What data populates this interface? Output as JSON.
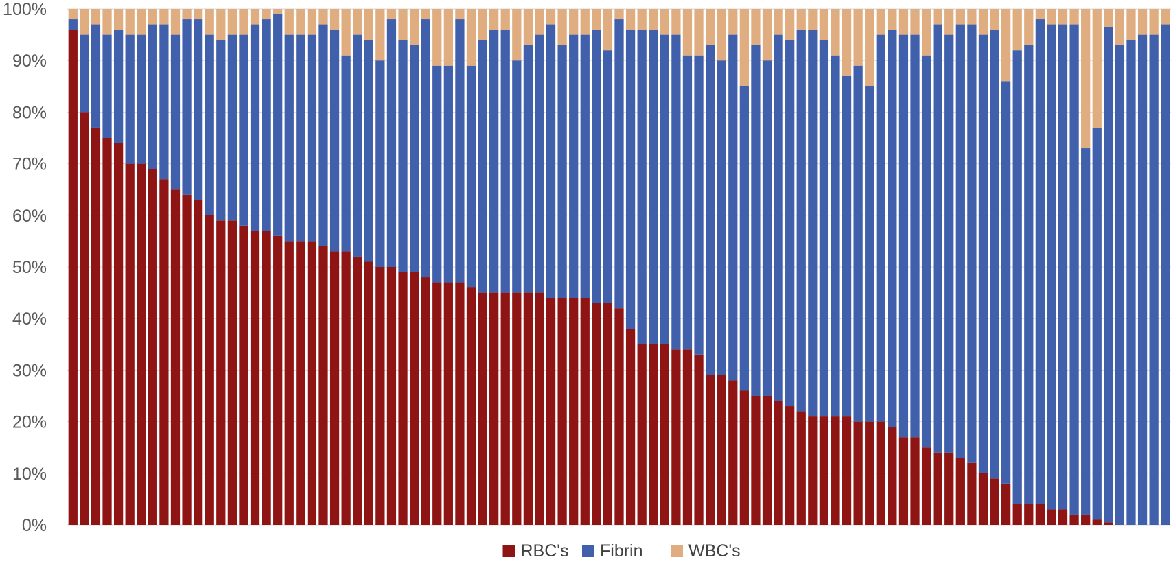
{
  "chart_data": {
    "type": "bar",
    "stacked": true,
    "percent_stacked": true,
    "ylim": [
      0,
      100
    ],
    "y_ticks": [
      "0%",
      "10%",
      "20%",
      "30%",
      "40%",
      "50%",
      "60%",
      "70%",
      "80%",
      "90%",
      "100%"
    ],
    "grid": true,
    "legend_position": "bottom",
    "series": [
      {
        "name": "RBC's",
        "color": "#8f1414",
        "values": [
          96,
          80,
          77,
          75,
          74,
          70,
          70,
          69,
          67,
          65,
          64,
          63,
          60,
          59,
          59,
          58,
          57,
          57,
          56,
          55,
          55,
          55,
          54,
          53,
          53,
          52,
          51,
          50,
          50,
          49,
          49,
          48,
          47,
          47,
          47,
          46,
          45,
          45,
          45,
          45,
          45,
          45,
          44,
          44,
          44,
          44,
          43,
          43,
          42,
          38,
          35,
          35,
          35,
          34,
          34,
          33,
          29,
          29,
          28,
          26,
          25,
          25,
          24,
          23,
          22,
          21,
          21,
          21,
          21,
          20,
          20,
          20,
          19,
          17,
          17,
          15,
          14,
          14,
          13,
          12,
          10,
          9,
          8,
          4,
          4,
          4,
          3,
          3,
          2,
          2,
          1,
          0.5,
          0,
          0,
          0,
          0,
          0
        ]
      },
      {
        "name": "Fibrin",
        "color": "#4160ab",
        "values": [
          2,
          15,
          20,
          20,
          22,
          25,
          25,
          28,
          30,
          30,
          34,
          35,
          35,
          35,
          36,
          37,
          40,
          41,
          43,
          40,
          40,
          40,
          43,
          43,
          38,
          43,
          43,
          40,
          48,
          45,
          44,
          50,
          42,
          42,
          51,
          43,
          49,
          51,
          51,
          45,
          48,
          50,
          53,
          49,
          51,
          51,
          53,
          49,
          56,
          58,
          61,
          61,
          60,
          61,
          57,
          58,
          64,
          61,
          67,
          59,
          68,
          65,
          71,
          71,
          74,
          75,
          73,
          70,
          66,
          69,
          65,
          75,
          77,
          78,
          78,
          76,
          83,
          81,
          84,
          85,
          85,
          87,
          78,
          88,
          89,
          94,
          94,
          94,
          95,
          71,
          76,
          96,
          93,
          94,
          95,
          95,
          97
        ]
      },
      {
        "name": "WBC's",
        "color": "#dfad7f",
        "values": [
          2,
          5,
          3,
          5,
          4,
          5,
          5,
          3,
          3,
          5,
          2,
          2,
          5,
          6,
          5,
          5,
          3,
          2,
          1,
          5,
          5,
          5,
          3,
          4,
          9,
          5,
          6,
          10,
          2,
          6,
          7,
          2,
          11,
          11,
          2,
          11,
          6,
          4,
          4,
          10,
          7,
          5,
          3,
          7,
          5,
          5,
          4,
          8,
          2,
          4,
          4,
          4,
          5,
          5,
          9,
          9,
          7,
          10,
          5,
          15,
          7,
          10,
          5,
          6,
          4,
          4,
          6,
          9,
          13,
          11,
          15,
          5,
          4,
          5,
          5,
          9,
          3,
          5,
          3,
          3,
          5,
          4,
          14,
          8,
          7,
          2,
          3,
          3,
          3,
          27,
          23,
          3.5,
          7,
          6,
          5,
          5,
          3
        ]
      }
    ]
  }
}
